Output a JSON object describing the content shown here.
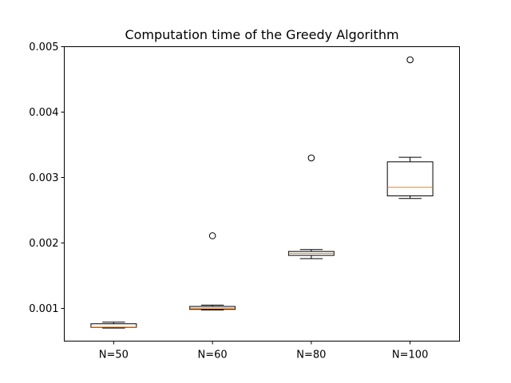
{
  "chart_data": {
    "type": "boxplot",
    "title": "Computation time of the Greedy Algorithm",
    "xlabel": "",
    "ylabel": "",
    "categories": [
      "N=50",
      "N=60",
      "N=80",
      "N=100"
    ],
    "ylim": [
      0.0005,
      0.005
    ],
    "yticks": [
      0.001,
      0.002,
      0.003,
      0.004,
      0.005
    ],
    "ytick_labels": [
      "0.001",
      "0.002",
      "0.003",
      "0.004",
      "0.005"
    ],
    "grid": false,
    "boxes": [
      {
        "whislo": 0.0007,
        "q1": 0.00071,
        "med": 0.000715,
        "q3": 0.000765,
        "whishi": 0.00079,
        "fliers": []
      },
      {
        "whislo": 0.000975,
        "q1": 0.000985,
        "med": 0.001005,
        "q3": 0.00103,
        "whishi": 0.00105,
        "fliers": [
          0.00211
        ]
      },
      {
        "whislo": 0.00176,
        "q1": 0.00181,
        "med": 0.00184,
        "q3": 0.00187,
        "whishi": 0.0019,
        "fliers": [
          0.0033
        ]
      },
      {
        "whislo": 0.00268,
        "q1": 0.00272,
        "med": 0.00285,
        "q3": 0.00324,
        "whishi": 0.00331,
        "fliers": [
          0.0048
        ]
      }
    ],
    "colors": {
      "box": "#000000",
      "median": "#ff7f0e",
      "flier": "#000000"
    }
  }
}
